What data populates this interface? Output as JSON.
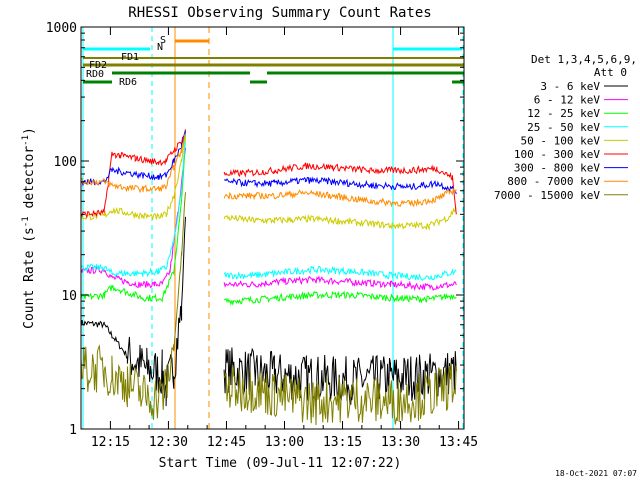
{
  "chart_data": {
    "type": "line",
    "title": "RHESSI Observing Summary Count Rates",
    "xlabel": "Start Time (09-Jul-11 12:07:22)",
    "ylabel_main": "Count Rate (s",
    "ylabel_sup1": "-1",
    "ylabel_mid": " detector",
    "ylabel_sup2": "-1",
    "ylabel_end": ")",
    "yscale": "log",
    "ylim": [
      1,
      1000
    ],
    "xlim_minutes": [
      0,
      99
    ],
    "x_ticks": [
      {
        "label": "12:15",
        "minutes": 7.6
      },
      {
        "label": "12:30",
        "minutes": 22.6
      },
      {
        "label": "12:45",
        "minutes": 37.6
      },
      {
        "label": "13:00",
        "minutes": 52.6
      },
      {
        "label": "13:15",
        "minutes": 67.6
      },
      {
        "label": "13:30",
        "minutes": 82.6
      },
      {
        "label": "13:45",
        "minutes": 97.6
      }
    ],
    "y_ticks": [
      {
        "label": "1",
        "value": 1
      },
      {
        "label": "10",
        "value": 10
      },
      {
        "label": "100",
        "value": 100
      },
      {
        "label": "1000",
        "value": 1000
      }
    ],
    "legend_header": [
      "Det 1,3,4,5,6,9,",
      "Att 0"
    ],
    "legend_position": "right",
    "series": [
      {
        "name": "3 - 6 keV",
        "color": "#000000",
        "points": [
          [
            0,
            6.2
          ],
          [
            6,
            6.0
          ],
          [
            8,
            5.0
          ],
          [
            12,
            3.5
          ],
          [
            17,
            2.8
          ],
          [
            21,
            2.6
          ],
          [
            22,
            2.0
          ],
          [
            24,
            3.0
          ],
          [
            26,
            8.0
          ],
          [
            27,
            40
          ]
        ]
      },
      {
        "name": "6 - 12 keV",
        "color": "#ff00ff",
        "points": [
          [
            0,
            15
          ],
          [
            6,
            15.5
          ],
          [
            8,
            13.5
          ],
          [
            12,
            12.5
          ],
          [
            15,
            12
          ],
          [
            19,
            12
          ],
          [
            21,
            12
          ],
          [
            23,
            15
          ],
          [
            25,
            40
          ],
          [
            27,
            120
          ]
        ]
      },
      {
        "name": "12 - 25 keV",
        "color": "#00ff00",
        "points": [
          [
            0,
            9.5
          ],
          [
            6,
            10
          ],
          [
            8,
            11.5
          ],
          [
            12,
            10.5
          ],
          [
            16,
            9.5
          ],
          [
            19,
            9.5
          ],
          [
            21,
            9.5
          ],
          [
            24,
            15
          ],
          [
            26,
            50
          ],
          [
            27,
            150
          ]
        ]
      },
      {
        "name": "25 - 50 keV",
        "color": "#00ffff",
        "points": [
          [
            0,
            16
          ],
          [
            6,
            16
          ],
          [
            8,
            14.5
          ],
          [
            12,
            14.5
          ],
          [
            16,
            14.5
          ],
          [
            20,
            15
          ],
          [
            22,
            16
          ],
          [
            24,
            25
          ],
          [
            26,
            60
          ],
          [
            27,
            160
          ]
        ]
      },
      {
        "name": "50 - 100 keV",
        "color": "#cccc00",
        "points": [
          [
            0,
            38
          ],
          [
            6,
            39
          ],
          [
            8,
            43
          ],
          [
            12,
            41
          ],
          [
            16,
            39
          ],
          [
            20,
            38
          ],
          [
            22,
            40
          ],
          [
            24,
            55
          ],
          [
            26,
            100
          ],
          [
            27,
            160
          ]
        ]
      },
      {
        "name": "100 - 300 keV",
        "color": "#ff0000",
        "points": [
          [
            0,
            40
          ],
          [
            6,
            41
          ],
          [
            8,
            113
          ],
          [
            10,
            110
          ],
          [
            14,
            105
          ],
          [
            18,
            100
          ],
          [
            20,
            98
          ],
          [
            22,
            100
          ],
          [
            24,
            120
          ],
          [
            26,
            140
          ],
          [
            27,
            170
          ]
        ]
      },
      {
        "name": "300 - 800 keV",
        "color": "#0000ff",
        "points": [
          [
            0,
            70
          ],
          [
            6,
            70
          ],
          [
            8,
            85
          ],
          [
            12,
            82
          ],
          [
            16,
            78
          ],
          [
            20,
            76
          ],
          [
            22,
            78
          ],
          [
            24,
            100
          ],
          [
            26,
            130
          ],
          [
            27,
            165
          ]
        ]
      },
      {
        "name": "800 - 7000 keV",
        "color": "#ff8c00",
        "points": [
          [
            0,
            70
          ],
          [
            6,
            70
          ],
          [
            8,
            66
          ],
          [
            12,
            63
          ],
          [
            16,
            62
          ],
          [
            20,
            62
          ],
          [
            22,
            64
          ],
          [
            24,
            90
          ],
          [
            26,
            120
          ],
          [
            27,
            160
          ]
        ]
      },
      {
        "name": "7000 - 15000 keV",
        "color": "#808000",
        "points": [
          [
            0,
            2.8
          ],
          [
            6,
            2.8
          ],
          [
            8,
            2.5
          ],
          [
            12,
            2.2
          ],
          [
            16,
            1.8
          ],
          [
            20,
            1.7
          ],
          [
            22,
            2.0
          ],
          [
            24,
            4
          ],
          [
            26,
            20
          ],
          [
            27,
            60
          ]
        ]
      }
    ],
    "series_segment2": [
      {
        "name": "3 - 6 keV",
        "points": [
          [
            37,
            2.8
          ],
          [
            45,
            2.6
          ],
          [
            50,
            2.5
          ],
          [
            60,
            2.4
          ],
          [
            70,
            2.3
          ],
          [
            80,
            2.4
          ],
          [
            90,
            2.5
          ],
          [
            97,
            2.7
          ]
        ]
      },
      {
        "name": "6 - 12 keV",
        "points": [
          [
            37,
            12
          ],
          [
            45,
            12
          ],
          [
            50,
            12.5
          ],
          [
            60,
            13
          ],
          [
            70,
            12.5
          ],
          [
            80,
            12
          ],
          [
            90,
            11.5
          ],
          [
            97,
            12
          ]
        ]
      },
      {
        "name": "12 - 25 keV",
        "points": [
          [
            37,
            9
          ],
          [
            45,
            9.2
          ],
          [
            50,
            9.5
          ],
          [
            60,
            10
          ],
          [
            70,
            10
          ],
          [
            80,
            9.5
          ],
          [
            90,
            9.3
          ],
          [
            97,
            10
          ]
        ]
      },
      {
        "name": "25 - 50 keV",
        "points": [
          [
            37,
            14
          ],
          [
            45,
            14
          ],
          [
            50,
            14.5
          ],
          [
            60,
            15.5
          ],
          [
            70,
            15
          ],
          [
            80,
            14
          ],
          [
            90,
            13.5
          ],
          [
            97,
            15
          ]
        ]
      },
      {
        "name": "50 - 100 keV",
        "points": [
          [
            37,
            38
          ],
          [
            45,
            36
          ],
          [
            50,
            36
          ],
          [
            60,
            37
          ],
          [
            70,
            35
          ],
          [
            80,
            33
          ],
          [
            90,
            33
          ],
          [
            95,
            38
          ],
          [
            97,
            45
          ]
        ]
      },
      {
        "name": "100 - 300 keV",
        "points": [
          [
            37,
            80
          ],
          [
            45,
            82
          ],
          [
            50,
            85
          ],
          [
            58,
            92
          ],
          [
            65,
            90
          ],
          [
            75,
            85
          ],
          [
            85,
            85
          ],
          [
            92,
            88
          ],
          [
            96,
            75
          ],
          [
            97,
            40
          ]
        ]
      },
      {
        "name": "300 - 800 keV",
        "points": [
          [
            37,
            70
          ],
          [
            45,
            68
          ],
          [
            50,
            68
          ],
          [
            58,
            72
          ],
          [
            65,
            70
          ],
          [
            75,
            66
          ],
          [
            85,
            64
          ],
          [
            92,
            68
          ],
          [
            97,
            60
          ]
        ]
      },
      {
        "name": "800 - 7000 keV",
        "points": [
          [
            37,
            55
          ],
          [
            45,
            55
          ],
          [
            50,
            55
          ],
          [
            58,
            58
          ],
          [
            65,
            55
          ],
          [
            75,
            50
          ],
          [
            85,
            48
          ],
          [
            92,
            52
          ],
          [
            97,
            62
          ]
        ]
      },
      {
        "name": "7000 - 15000 keV",
        "points": [
          [
            37,
            2.0
          ],
          [
            45,
            2.0
          ],
          [
            50,
            1.8
          ],
          [
            60,
            1.6
          ],
          [
            70,
            1.7
          ],
          [
            80,
            1.6
          ],
          [
            90,
            1.8
          ],
          [
            97,
            2.2
          ]
        ]
      }
    ],
    "state_bars": [
      {
        "label": "S",
        "color": "#ff8c00"
      },
      {
        "label": "N",
        "color": "#00cccc"
      },
      {
        "label": "FD1",
        "color": "#808000"
      },
      {
        "label": "FD2",
        "color": "#808000"
      },
      {
        "label": "RD0",
        "color": "#008000"
      },
      {
        "label": "RD6",
        "color": "#008000"
      }
    ],
    "footer_date": "18-Oct-2021 07:07"
  }
}
